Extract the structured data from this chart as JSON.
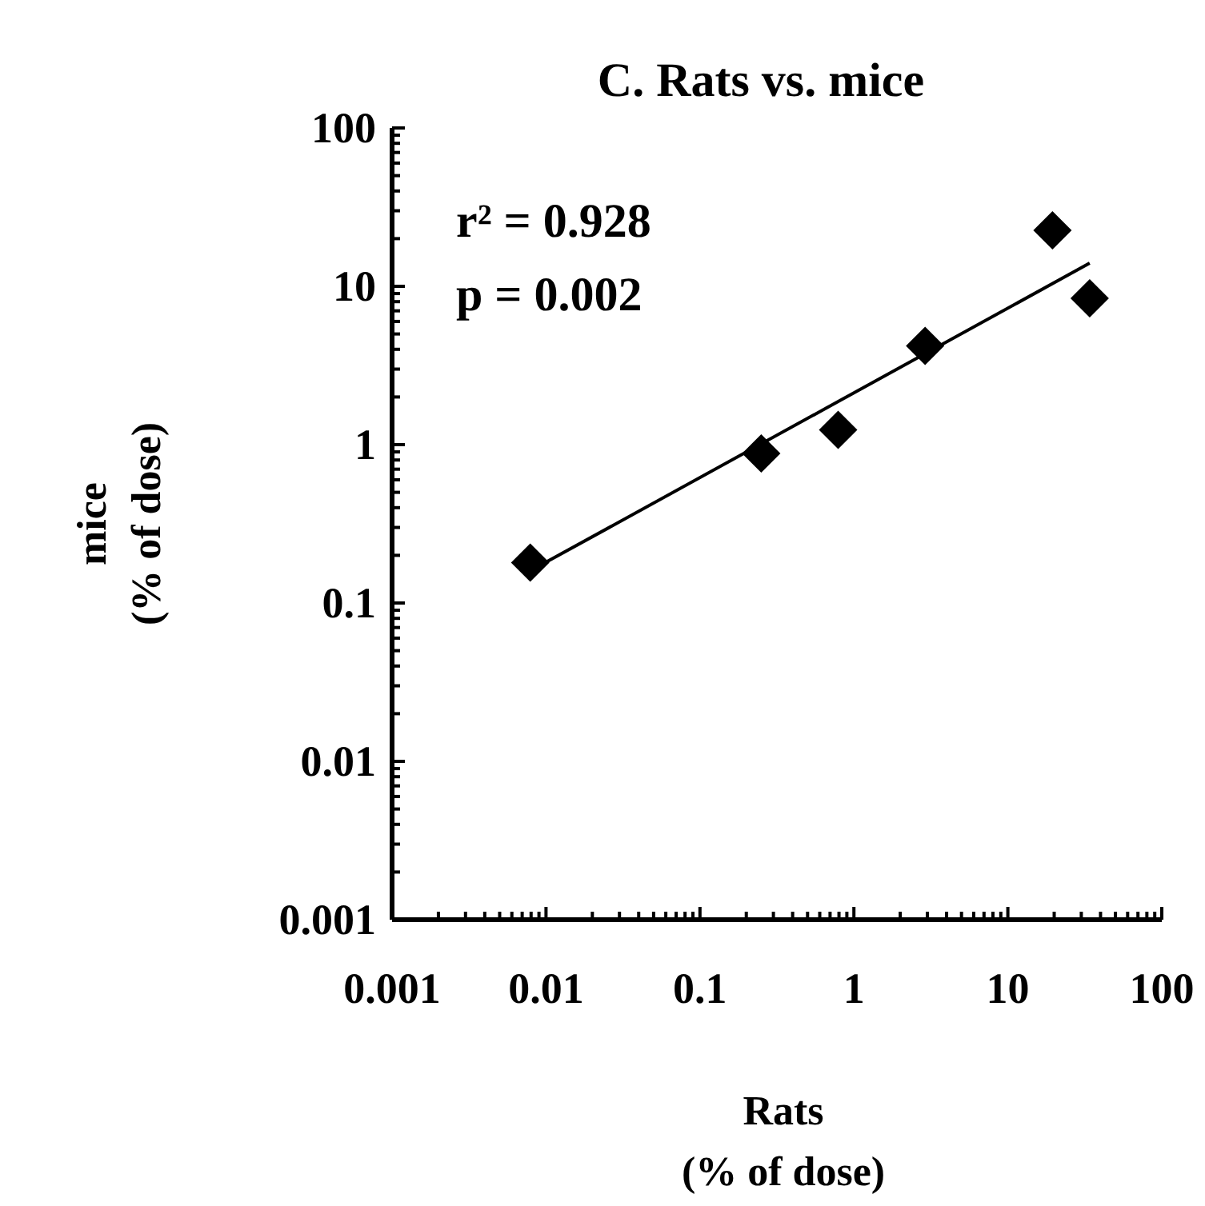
{
  "chart_data": {
    "type": "scatter",
    "title": "C. Rats vs. mice",
    "xlabel": "Rats\n(% of dose)",
    "ylabel": "mice\n(% of dose)",
    "log": "xy",
    "marker": "diamond",
    "grid": false,
    "annotations": [
      "r² = 0.928",
      "p = 0.002"
    ],
    "xlim": [
      0.001,
      100
    ],
    "ylim": [
      0.001,
      100
    ],
    "xticks": [
      0.001,
      0.01,
      0.1,
      1,
      10,
      100,
      {
        "value": 0.002,
        "label": null
      },
      {
        "value": 0.003,
        "label": null
      },
      {
        "value": 0.004,
        "label": null
      },
      {
        "value": 0.005,
        "label": null
      },
      {
        "value": 0.006,
        "label": null
      },
      {
        "value": 0.007,
        "label": null
      },
      {
        "value": 0.008,
        "label": null
      },
      {
        "value": 0.009,
        "label": null
      },
      {
        "value": 0.02,
        "label": null
      },
      {
        "value": 0.03,
        "label": null
      },
      {
        "value": 0.04,
        "label": null
      },
      {
        "value": 0.05,
        "label": null
      },
      {
        "value": 0.06,
        "label": null
      },
      {
        "value": 0.07,
        "label": null
      },
      {
        "value": 0.08,
        "label": null
      },
      {
        "value": 0.09,
        "label": null
      },
      {
        "value": 0.2,
        "label": null
      },
      {
        "value": 0.3,
        "label": null
      },
      {
        "value": 0.4,
        "label": null
      },
      {
        "value": 0.5,
        "label": null
      },
      {
        "value": 0.6,
        "label": null
      },
      {
        "value": 0.7,
        "label": null
      },
      {
        "value": 0.8,
        "label": null
      },
      {
        "value": 0.9,
        "label": null
      },
      {
        "value": 2,
        "label": null
      },
      {
        "value": 3,
        "label": null
      },
      {
        "value": 4,
        "label": null
      },
      {
        "value": 5,
        "label": null
      },
      {
        "value": 6,
        "label": null
      },
      {
        "value": 7,
        "label": null
      },
      {
        "value": 8,
        "label": null
      },
      {
        "value": 9,
        "label": null
      },
      {
        "value": 20,
        "label": null
      },
      {
        "value": 30,
        "label": null
      },
      {
        "value": 40,
        "label": null
      },
      {
        "value": 50,
        "label": null
      },
      {
        "value": 60,
        "label": null
      },
      {
        "value": 70,
        "label": null
      },
      {
        "value": 80,
        "label": null
      },
      {
        "value": 90,
        "label": null
      }
    ],
    "yticks": [
      0.001,
      0.01,
      0.1,
      1,
      10,
      100,
      {
        "value": 0.002,
        "label": null
      },
      {
        "value": 0.003,
        "label": null
      },
      {
        "value": 0.004,
        "label": null
      },
      {
        "value": 0.005,
        "label": null
      },
      {
        "value": 0.006,
        "label": null
      },
      {
        "value": 0.007,
        "label": null
      },
      {
        "value": 0.008,
        "label": null
      },
      {
        "value": 0.009,
        "label": null
      },
      {
        "value": 0.02,
        "label": null
      },
      {
        "value": 0.03,
        "label": null
      },
      {
        "value": 0.04,
        "label": null
      },
      {
        "value": 0.05,
        "label": null
      },
      {
        "value": 0.06,
        "label": null
      },
      {
        "value": 0.07,
        "label": null
      },
      {
        "value": 0.08,
        "label": null
      },
      {
        "value": 0.09,
        "label": null
      },
      {
        "value": 0.2,
        "label": null
      },
      {
        "value": 0.3,
        "label": null
      },
      {
        "value": 0.4,
        "label": null
      },
      {
        "value": 0.5,
        "label": null
      },
      {
        "value": 0.6,
        "label": null
      },
      {
        "value": 0.7,
        "label": null
      },
      {
        "value": 0.8,
        "label": null
      },
      {
        "value": 0.9,
        "label": null
      },
      {
        "value": 2,
        "label": null
      },
      {
        "value": 3,
        "label": null
      },
      {
        "value": 4,
        "label": null
      },
      {
        "value": 5,
        "label": null
      },
      {
        "value": 6,
        "label": null
      },
      {
        "value": 7,
        "label": null
      },
      {
        "value": 8,
        "label": null
      },
      {
        "value": 9,
        "label": null
      },
      {
        "value": 20,
        "label": null
      },
      {
        "value": 30,
        "label": null
      },
      {
        "value": 40,
        "label": null
      },
      {
        "value": 50,
        "label": null
      },
      {
        "value": 60,
        "label": null
      },
      {
        "value": 70,
        "label": null
      },
      {
        "value": 80,
        "label": null
      },
      {
        "value": 90,
        "label": null
      }
    ],
    "series": [
      {
        "type": "scatter",
        "color": "#000000",
        "x": [
          0.0079,
          0.25,
          0.79,
          2.9,
          19.5,
          34
        ],
        "values": [
          0.18,
          0.88,
          1.24,
          4.2,
          22.6,
          8.4
        ]
      },
      {
        "type": "line",
        "color": "#000000",
        "marker": "none",
        "line_style": "solid",
        "x": [
          0.0089,
          34
        ],
        "values": [
          0.17,
          14
        ]
      }
    ]
  }
}
